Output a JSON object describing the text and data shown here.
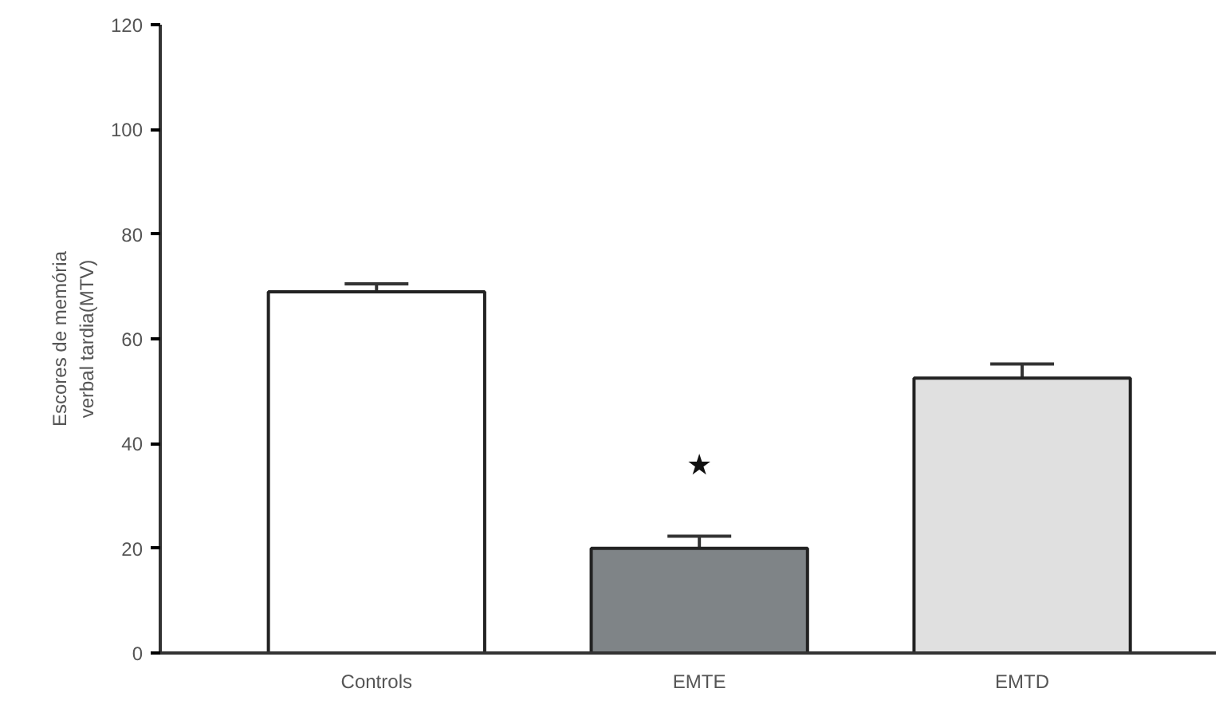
{
  "chart_data": {
    "type": "bar",
    "ylabel": "Escores de memória\nverbal tardia(MTV)",
    "categories": [
      "Controls",
      "EMTE",
      "EMTD"
    ],
    "values": [
      69,
      20,
      52.5
    ],
    "colors": [
      "#ffffff",
      "#7f8487",
      "#e0e0e0"
    ],
    "errors": [
      [
        69,
        70.5
      ],
      [
        20,
        22.3
      ],
      [
        52.5,
        55.2
      ]
    ],
    "ylim": [
      0,
      120
    ],
    "yticks": [
      0,
      20,
      40,
      60,
      80,
      100,
      120
    ],
    "grid": false,
    "annotations": [
      "★"
    ]
  }
}
